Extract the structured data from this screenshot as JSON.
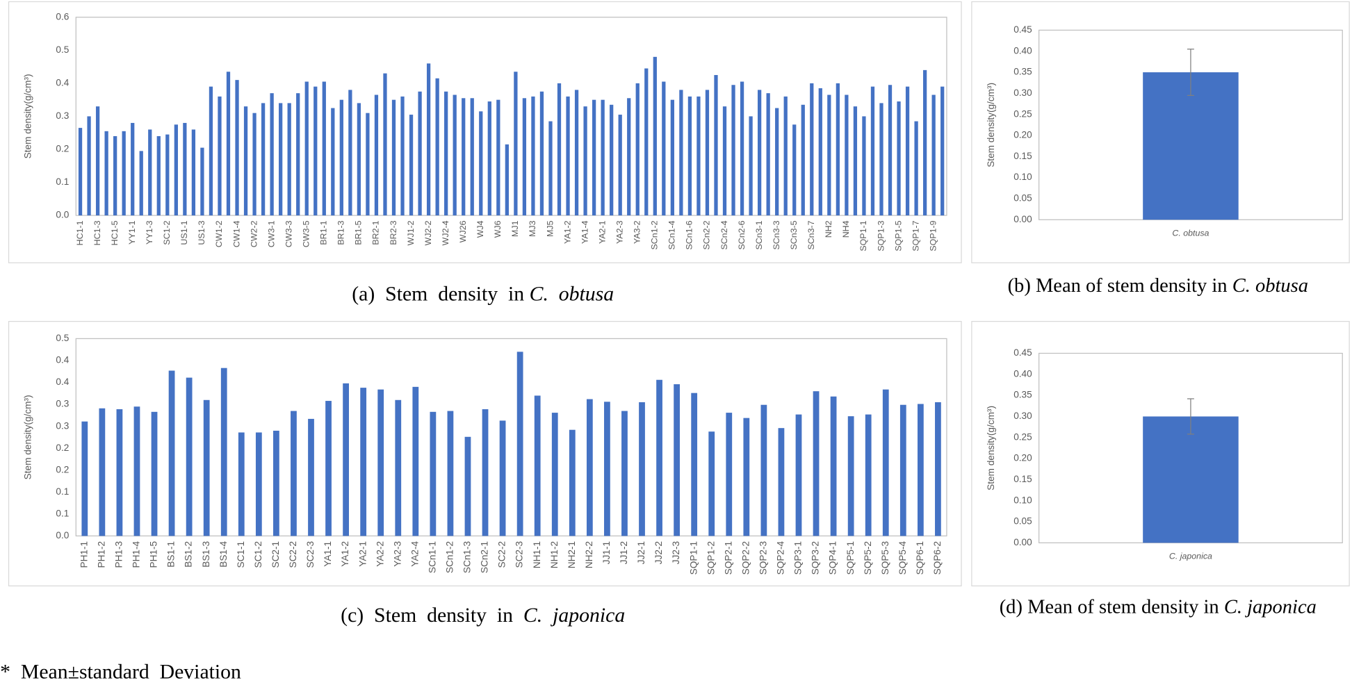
{
  "chart_data": [
    {
      "type": "bar",
      "ylabel": "Stem density(g/cm³)",
      "caption": "(a)  Stem  density  in ",
      "caption_italic": "C.  obtusa",
      "color": "#4472c4",
      "categories": [
        "HC1-1",
        null,
        "HC1-3",
        null,
        "HC1-5",
        null,
        "YY1-1",
        null,
        "YY1-3",
        null,
        "SC1-2",
        null,
        "US1-1",
        null,
        "US1-3",
        null,
        "CW1-2",
        null,
        "CW1-4",
        null,
        "CW2-2",
        null,
        "CW3-1",
        null,
        "CW3-3",
        null,
        "CW3-5",
        null,
        "BR1-1",
        null,
        "BR1-3",
        null,
        "BR1-5",
        null,
        "BR2-1",
        null,
        "BR2-3",
        null,
        "WJ1-2",
        null,
        "WJ2-2",
        null,
        "WJ2-4",
        null,
        "WJ26",
        null,
        "WJ4",
        null,
        "WJ6",
        null,
        "MJ1",
        null,
        "MJ3",
        null,
        "MJ5",
        null,
        "YA1-2",
        null,
        "YA1-4",
        null,
        "YA2-1",
        null,
        "YA2-3",
        null,
        "YA3-2",
        null,
        "SCn1-2",
        null,
        "SCn1-4",
        null,
        "SCn1-6",
        null,
        "SCn2-2",
        null,
        "SCn2-4",
        null,
        "SCn2-6",
        null,
        "SCn3-1",
        null,
        "SCn3-3",
        null,
        "SCn3-5",
        null,
        "SCn3-7",
        null,
        "NH2",
        null,
        "NH4",
        null,
        "SQP1-1",
        null,
        "SQP1-3",
        null,
        "SQP1-5",
        null,
        "SQP1-7",
        null,
        "SQP1-9",
        null
      ],
      "values": [
        0.265,
        0.3,
        0.33,
        0.255,
        0.24,
        0.255,
        0.28,
        0.195,
        0.26,
        0.24,
        0.245,
        0.275,
        0.28,
        0.26,
        0.205,
        0.39,
        0.36,
        0.435,
        0.41,
        0.33,
        0.31,
        0.34,
        0.37,
        0.34,
        0.34,
        0.37,
        0.405,
        0.39,
        0.405,
        0.325,
        0.35,
        0.38,
        0.34,
        0.31,
        0.365,
        0.43,
        0.35,
        0.36,
        0.305,
        0.375,
        0.46,
        0.415,
        0.375,
        0.365,
        0.355,
        0.355,
        0.315,
        0.345,
        0.35,
        0.215,
        0.435,
        0.355,
        0.36,
        0.375,
        0.285,
        0.4,
        0.36,
        0.38,
        0.33,
        0.35,
        0.35,
        0.335,
        0.305,
        0.355,
        0.4,
        0.445,
        0.48,
        0.405,
        0.35,
        0.38,
        0.36,
        0.36,
        0.38,
        0.425,
        0.33,
        0.395,
        0.405,
        0.3,
        0.38,
        0.37,
        0.325,
        0.36,
        0.275,
        0.335,
        0.4,
        0.385,
        0.365,
        0.4,
        0.365,
        0.33,
        0.3,
        0.39,
        0.34,
        0.395,
        0.345,
        0.39,
        0.285,
        0.44,
        0.365,
        0.39
      ],
      "ylim": [
        0,
        0.6
      ],
      "yticks": [
        {
          "value": 0,
          "label": "0.0"
        },
        0.1,
        0.2,
        0.3,
        0.4,
        0.5,
        0.6
      ],
      "grid": false
    },
    {
      "type": "bar",
      "ylabel": "Stem density(g/cm³)",
      "caption": "(b) Mean of stem density in ",
      "caption_italic": "C. obtusa",
      "color": "#4472c4",
      "categories": [
        "C. obtusa"
      ],
      "values": [
        0.35
      ],
      "errors": [
        0.055
      ],
      "error_color": "#7f7f7f",
      "ylim": [
        0,
        0.45
      ],
      "yticks": [
        {
          "value": 0,
          "label": "0.00"
        },
        {
          "value": 0.05,
          "label": "0.05"
        },
        {
          "value": 0.1,
          "label": "0.10"
        },
        {
          "value": 0.15,
          "label": "0.15"
        },
        {
          "value": 0.2,
          "label": "0.20"
        },
        {
          "value": 0.25,
          "label": "0.25"
        },
        {
          "value": 0.3,
          "label": "0.30"
        },
        {
          "value": 0.35,
          "label": "0.35"
        },
        {
          "value": 0.4,
          "label": "0.40"
        },
        {
          "value": 0.45,
          "label": "0.45"
        }
      ],
      "grid": false
    },
    {
      "type": "bar",
      "ylabel": "Stem density(g/cm³)",
      "caption": "(c)  Stem  density  in  ",
      "caption_italic": "C.  japonica",
      "color": "#4472c4",
      "categories": [
        "PH1-1",
        "PH1-2",
        "PH1-3",
        "PH1-4",
        "PH1-5",
        "BS1-1",
        "BS1-2",
        "BS1-3",
        "BS1-4",
        "SC1-1",
        "SC1-2",
        "SC2-1",
        "SC2-2",
        "SC2-3",
        "YA1-1",
        "YA1-2",
        "YA2-1",
        "YA2-2",
        "YA2-3",
        "YA2-4",
        "SCn1-1",
        "SCn1-2",
        "SCn1-3",
        "SCn2-1",
        "SC2-2",
        "SC2-3",
        "NH1-1",
        "NH1-2",
        "NH2-1",
        "NH2-2",
        "JJ1-1",
        "JJ1-2",
        "JJ2-1",
        "JJ2-2",
        "JJ2-3",
        "SQP1-1",
        "SQP1-2",
        "SQP2-1",
        "SQP2-2",
        "SQP2-3",
        "SQP2-4",
        "SQP3-1",
        "SQP3-2",
        "SQP4-1",
        "SQP5-1",
        "SQP5-2",
        "SQP5-3",
        "SQP5-4",
        "SQP6-1",
        "SQP6-2"
      ],
      "values": [
        0.261,
        0.291,
        0.289,
        0.295,
        0.283,
        0.377,
        0.361,
        0.31,
        0.383,
        0.236,
        0.236,
        0.24,
        0.285,
        0.267,
        0.308,
        0.348,
        0.338,
        0.334,
        0.31,
        0.34,
        0.283,
        0.285,
        0.226,
        0.289,
        0.263,
        0.42,
        0.32,
        0.281,
        0.242,
        0.312,
        0.306,
        0.285,
        0.305,
        0.356,
        0.346,
        0.326,
        0.238,
        0.281,
        0.269,
        0.299,
        0.246,
        0.277,
        0.33,
        0.318,
        0.273,
        0.277,
        0.334,
        0.299,
        0.301,
        0.305
      ],
      "ylim": [
        0,
        0.45
      ],
      "yticks": [
        {
          "value": 0,
          "label": "0.0"
        },
        {
          "value": 0.05,
          "label": "0.1"
        },
        0.1,
        {
          "value": 0.15,
          "label": "0.2"
        },
        0.2,
        {
          "value": 0.25,
          "label": "0.3"
        },
        0.3,
        {
          "value": 0.35,
          "label": "0.4"
        },
        0.4,
        {
          "value": 0.45,
          "label": "0.5"
        }
      ],
      "grid": false
    },
    {
      "type": "bar",
      "ylabel": "Stem density(g/cm³)",
      "caption": "(d) Mean of stem density in ",
      "caption_italic": "C. japonica",
      "color": "#4472c4",
      "categories": [
        "C. japonica"
      ],
      "values": [
        0.3
      ],
      "errors": [
        0.042
      ],
      "error_color": "#7f7f7f",
      "ylim": [
        0,
        0.45
      ],
      "yticks": [
        {
          "value": 0,
          "label": "0.00"
        },
        {
          "value": 0.05,
          "label": "0.05"
        },
        {
          "value": 0.1,
          "label": "0.10"
        },
        {
          "value": 0.15,
          "label": "0.15"
        },
        {
          "value": 0.2,
          "label": "0.20"
        },
        {
          "value": 0.25,
          "label": "0.25"
        },
        {
          "value": 0.3,
          "label": "0.30"
        },
        {
          "value": 0.35,
          "label": "0.35"
        },
        {
          "value": 0.4,
          "label": "0.40"
        },
        {
          "value": 0.45,
          "label": "0.45"
        }
      ],
      "grid": false
    }
  ],
  "footnote": "*  Mean±standard  Deviation"
}
